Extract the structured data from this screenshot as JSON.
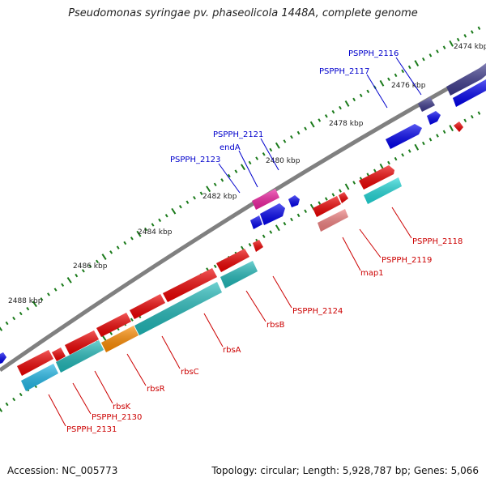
{
  "title": "Pseudomonas syringae pv. phaseolicola 1448A, complete genome",
  "accession": "Accession: NC_005773",
  "topology": "Topology: circular; Length: 5,928,787 bp; Genes: 5,066",
  "kbp_ticks": [
    "2474 kbp",
    "2476 kbp",
    "2478 kbp",
    "2480 kbp",
    "2482 kbp",
    "2484 kbp",
    "2486 kbp",
    "2488 kbp"
  ],
  "colors": {
    "backbone": "#808080",
    "forward_cds": "#0000ee",
    "forward_dark": "#3d3a8c",
    "forward_pink": "#ee1fa0",
    "reverse_cds": "#ee0000",
    "reverse_light": "#f08080",
    "reverse_cyan": "#22d8d8",
    "reverse_teal": "#20b8b8",
    "reverse_orange": "#ff8c00",
    "tick": "#1a7a1a",
    "label_forward": "#0000cc",
    "label_reverse": "#cc0000"
  },
  "forward_labels": [
    "PSPPH_2116",
    "PSPPH_2117",
    "PSPPH_2121",
    "endA",
    "PSPPH_2123"
  ],
  "reverse_labels": [
    "PSPPH_2118",
    "PSPPH_2119",
    "map1",
    "PSPPH_2124",
    "rbsB",
    "rbsA",
    "rbsC",
    "rbsR",
    "rbsK",
    "PSPPH_2130",
    "PSPPH_2131"
  ]
}
